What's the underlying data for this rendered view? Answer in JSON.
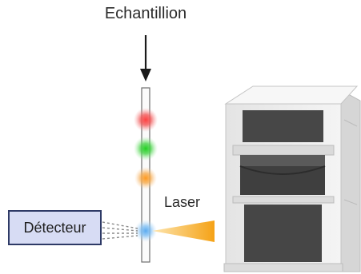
{
  "labels": {
    "sample": "Echantillion",
    "laser": "Laser",
    "detector": "Détecteur"
  },
  "colors": {
    "particle_red": "#f04646",
    "particle_green": "#3cc83c",
    "particle_orange": "#f5a030",
    "particle_blue": "#64b4f0",
    "laser_beam": "#f6a81e",
    "detector_fill": "#d7dcf4",
    "detector_border": "#2e3a66",
    "instrument_body": "#ececec",
    "instrument_dark": "#444444"
  }
}
